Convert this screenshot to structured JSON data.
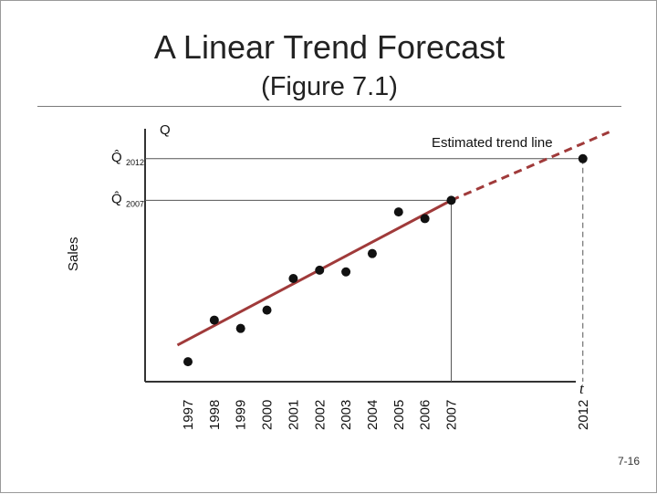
{
  "slide": {
    "title": "A Linear Trend Forecast",
    "subtitle": "(Figure 7.1)",
    "slide_number": "7-16"
  },
  "colors": {
    "trend": "#a03a3a",
    "points": "#111111",
    "axes": "#333333"
  },
  "chart_data": {
    "type": "scatter",
    "title": "",
    "xlabel": "t",
    "ylabel": "Sales",
    "y_axis_label": "Q",
    "x_categories": [
      "1997",
      "1998",
      "1999",
      "2000",
      "2001",
      "2002",
      "2003",
      "2004",
      "2005",
      "2006",
      "2007",
      "2012"
    ],
    "series": [
      {
        "name": "Sales",
        "points": [
          {
            "x": 1997,
            "y": 1.2
          },
          {
            "x": 1998,
            "y": 3.7
          },
          {
            "x": 1999,
            "y": 3.2
          },
          {
            "x": 2000,
            "y": 4.3
          },
          {
            "x": 2001,
            "y": 6.2
          },
          {
            "x": 2002,
            "y": 6.7
          },
          {
            "x": 2003,
            "y": 6.6
          },
          {
            "x": 2004,
            "y": 7.7
          },
          {
            "x": 2005,
            "y": 10.2
          },
          {
            "x": 2006,
            "y": 9.8
          },
          {
            "x": 2007,
            "y": 10.9
          },
          {
            "x": 2012,
            "y": 13.4
          }
        ]
      }
    ],
    "trend_line": {
      "label": "Estimated trend line",
      "start": {
        "x": 1996.6,
        "y": 2.2
      },
      "solid_end": {
        "x": 2007,
        "y": 10.9
      },
      "dashed_end": {
        "x": 2013,
        "y": 15.0
      }
    },
    "forecasts": [
      {
        "label": "Q̂",
        "sub": "2012",
        "x": 2012,
        "y": 13.4
      },
      {
        "label": "Q̂",
        "sub": "2007",
        "x": 2007,
        "y": 10.9
      }
    ],
    "xlim": [
      1995.2,
      2015.5
    ],
    "ylim": [
      0,
      15.2
    ],
    "grid": false,
    "legend": "none"
  }
}
